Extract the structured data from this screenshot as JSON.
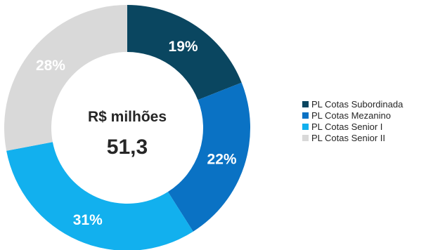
{
  "chart_data": {
    "type": "pie",
    "center_title": "R$ milhões",
    "center_value": "51,3",
    "categories": [
      "PL Cotas Subordinada",
      "PL Cotas Mezanino",
      "PL Cotas Senior I",
      "PL Cotas Senior II"
    ],
    "values": [
      19,
      22,
      31,
      28
    ],
    "labels": [
      "19%",
      "22%",
      "31%",
      "28%"
    ],
    "colors": [
      "#0a4660",
      "#0a72c4",
      "#12b0ee",
      "#d9d9d9"
    ],
    "label_colors": [
      "#ffffff",
      "#ffffff",
      "#ffffff",
      "#ffffff"
    ],
    "legend_position": "right"
  }
}
